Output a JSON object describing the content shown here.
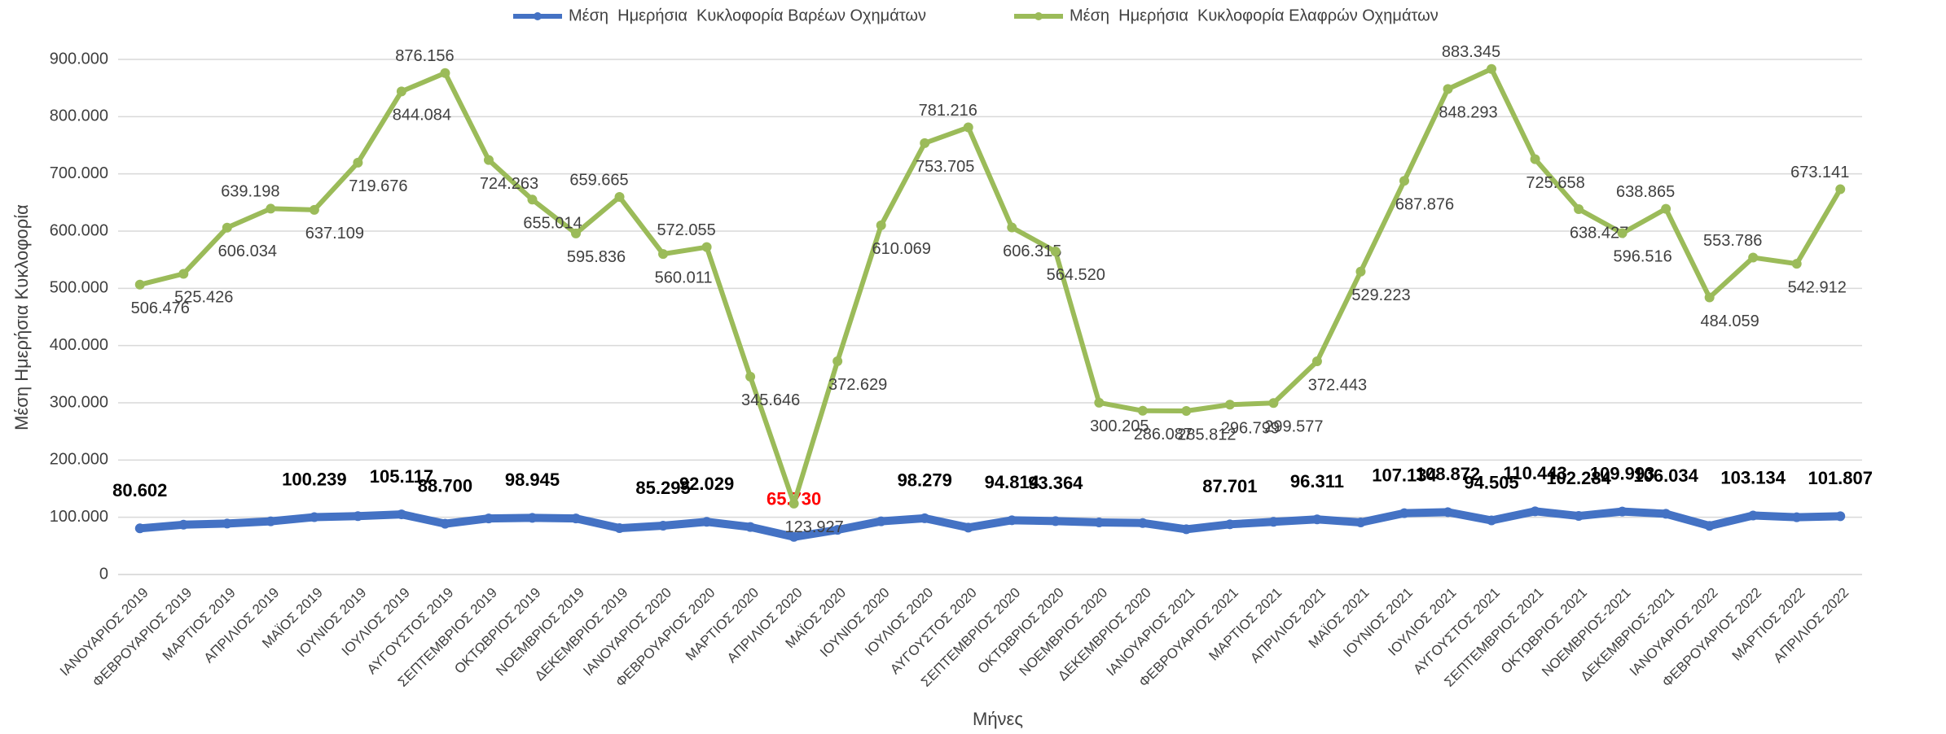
{
  "chart_data": {
    "type": "line",
    "x_label": "Μήνες",
    "y_label": "Μέση Ημερήσια Κυκλοφορία",
    "categories": [
      "ΙΑΝΟΥΑΡΙΟΣ 2019",
      "ΦΕΒΡΟΥΑΡΙΟΣ 2019",
      "ΜΑΡΤΙΟΣ 2019",
      "ΑΠΡΙΛΙΟΣ 2019",
      "ΜΑΪΟΣ 2019",
      "ΙΟΥΝΙΟΣ 2019",
      "ΙΟΥΛΙΟΣ 2019",
      "ΑΥΓΟΥΣΤΟΣ 2019",
      "ΣΕΠΤΕΜΒΡΙΟΣ 2019",
      "ΟΚΤΩΒΡΙΟΣ 2019",
      "ΝΟΕΜΒΡΙΟΣ 2019",
      "ΔΕΚΕΜΒΡΙΟΣ 2019",
      "ΙΑΝΟΥΑΡΙΟΣ 2020",
      "ΦΕΒΡΟΥΑΡΙΟΣ 2020",
      "ΜΑΡΤΙΟΣ 2020",
      "ΑΠΡΙΛΙΟΣ 2020",
      "ΜΑΪΟΣ 2020",
      "ΙΟΥΝΙΟΣ 2020",
      "ΙΟΥΛΙΟΣ 2020",
      "ΑΥΓΟΥΣΤΟΣ 2020",
      "ΣΕΠΤΕΜΒΡΙΟΣ 2020",
      "ΟΚΤΩΒΡΙΟΣ 2020",
      "ΝΟΕΜΒΡΙΟΣ 2020",
      "ΔΕΚΕΜΒΡΙΟΣ 2020",
      "ΙΑΝΟΥΑΡΙΟΣ 2021",
      "ΦΕΒΡΟΥΑΡΙΟΣ 2021",
      "ΜΑΡΤΙΟΣ 2021",
      "ΑΠΡΙΛΙΟΣ 2021",
      "ΜΑΪΟΣ 2021",
      "ΙΟΥΝΙΟΣ 2021",
      "ΙΟΥΛΙΟΣ 2021",
      "ΑΥΓΟΥΣΤΟΣ 2021",
      "ΣΕΠΤΕΜΒΡΙΟΣ 2021",
      "ΟΚΤΩΒΡΙΟΣ 2021",
      "ΝΟΕΜΒΡΙΟΣ-2021",
      "ΔΕΚΕΜΒΡΙΟΣ-2021",
      "ΙΑΝΟΥΑΡΙΟΣ 2022",
      "ΦΕΒΡΟΥΑΡΙΟΣ 2022",
      "ΜΑΡΤΙΟΣ 2022",
      "ΑΠΡΙΛΙΟΣ 2022"
    ],
    "series": [
      {
        "name": "Μέση  Ημερήσια  Κυκλοφορία Βαρέων Οχημάτων",
        "color": "#4472c4",
        "label_bold": true,
        "highlight": {
          "index": 15,
          "color": "#ff0000"
        },
        "values": [
          80602,
          87000,
          89000,
          93000,
          100239,
          102000,
          105117,
          88700,
          98000,
          98945,
          98000,
          81000,
          85295,
          92029,
          83000,
          65730,
          78000,
          93000,
          98279,
          82000,
          94814,
          93364,
          91000,
          90000,
          79000,
          87701,
          92000,
          96311,
          91000,
          107134,
          108872,
          94505,
          110443,
          102284,
          109993,
          106034,
          85000,
          103134,
          100000,
          101807
        ],
        "value_labels": [
          "80.602",
          null,
          null,
          null,
          "100.239",
          null,
          "105.117",
          "88.700",
          null,
          "98.945",
          null,
          null,
          "85.295",
          "92.029",
          null,
          "65.730",
          null,
          null,
          "98.279",
          null,
          "94.814",
          "93.364",
          null,
          null,
          null,
          "87.701",
          null,
          "96.311",
          null,
          "107.134",
          "108.872",
          "94.505",
          "110.443",
          "102.284",
          "109.993",
          "106.034",
          null,
          "103.134",
          null,
          "101.807"
        ]
      },
      {
        "name": "Μέση  Ημερήσια  Κυκλοφορία Ελαφρών Οχημάτων",
        "color": "#9bbb59",
        "label_bold": false,
        "values": [
          506476,
          525426,
          606034,
          639198,
          637109,
          719676,
          844084,
          876156,
          724263,
          655014,
          595836,
          659665,
          560011,
          572055,
          345646,
          123927,
          372629,
          610069,
          753705,
          781216,
          606315,
          564520,
          300205,
          286087,
          285812,
          296799,
          299577,
          372443,
          529223,
          687876,
          848293,
          883345,
          725658,
          638427,
          596516,
          638865,
          484059,
          553786,
          542912,
          673141
        ],
        "value_labels": [
          "506.476",
          "525.426",
          "606.034",
          "639.198",
          "637.109",
          "719.676",
          "844.084",
          "876.156",
          "724.263",
          "655.014",
          "595.836",
          "659.665",
          "560.011",
          "572.055",
          "345.646",
          "123.927",
          "372.629",
          "610.069",
          "753.705",
          "781.216",
          "606.315",
          "564.520",
          "300.205",
          "286.087",
          "285.812",
          "296.799",
          "299.577",
          "372.443",
          "529.223",
          "687.876",
          "848.293",
          "883.345",
          "725.658",
          "638.427",
          "596.516",
          "638.865",
          "484.059",
          "553.786",
          "542.912",
          "673.141"
        ]
      }
    ],
    "ylim": [
      0,
      900000
    ],
    "yticks": [
      0,
      {
        "value": 100000,
        "label": "100.000"
      },
      {
        "value": 200000,
        "label": "200.000"
      },
      {
        "value": 300000,
        "label": "300.000"
      },
      {
        "value": 400000,
        "label": "400.000"
      },
      {
        "value": 500000,
        "label": "500.000"
      },
      {
        "value": 600000,
        "label": "600.000"
      },
      {
        "value": 700000,
        "label": "700.000"
      },
      {
        "value": 800000,
        "label": "800.000"
      },
      {
        "value": 900000,
        "label": "900.000"
      }
    ],
    "grid": true,
    "legend": "top"
  }
}
